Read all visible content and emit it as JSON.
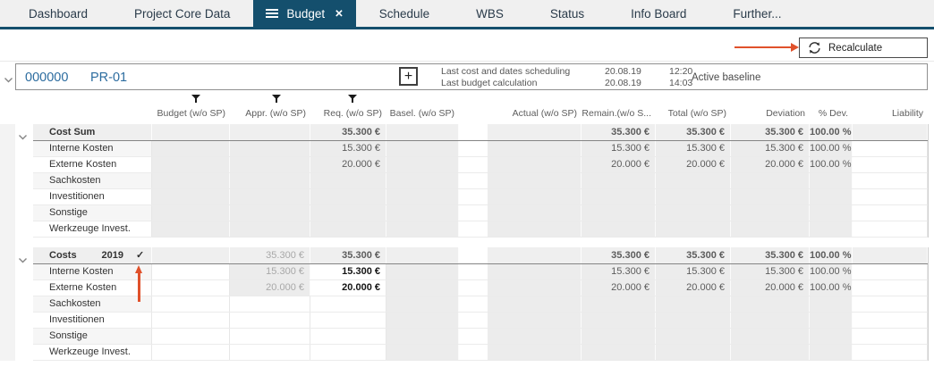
{
  "icons": {
    "close_tab": "✕",
    "check": "✓",
    "plus": "+"
  },
  "tabs": [
    {
      "label": "Dashboard",
      "active": false
    },
    {
      "label": "Project Core Data",
      "active": false
    },
    {
      "label": "Budget",
      "active": true
    },
    {
      "label": "Schedule",
      "active": false
    },
    {
      "label": "WBS",
      "active": false
    },
    {
      "label": "Status",
      "active": false
    },
    {
      "label": "Info Board",
      "active": false
    },
    {
      "label": "Further...",
      "active": false
    }
  ],
  "toolbar": {
    "recalculate": "Recalculate"
  },
  "project_bar": {
    "number": "000000",
    "code": "PR-01",
    "rows": [
      {
        "label": "Last cost and dates scheduling",
        "date": "20.08.19",
        "time": "12:20"
      },
      {
        "label": "Last budget calculation",
        "date": "20.08.19",
        "time": "14:03"
      }
    ],
    "baseline": "Active baseline"
  },
  "grid": {
    "headers": {
      "budget": "Budget (w/o SP)",
      "appr": "Appr. (w/o SP)",
      "req": "Req. (w/o SP)",
      "basel": "Basel. (w/o SP)",
      "actual": "Actual (w/o SP)",
      "remain": "Remain.(w/o S...",
      "total": "Total (w/o SP)",
      "deviation": "Deviation",
      "pdev": "% Dev.",
      "liability": "Liability"
    },
    "filter_on": [
      "budget",
      "appr",
      "req"
    ],
    "blocks": [
      {
        "title": "Cost Sum",
        "year": "",
        "checked": false,
        "summary": {
          "req": "35.300 €",
          "remain": "35.300 €",
          "total": "35.300 €",
          "deviation": "35.300 €",
          "pdev": "100.00 %"
        },
        "rows": [
          {
            "label": "Interne Kosten",
            "req": "15.300 €",
            "remain": "15.300 €",
            "total": "15.300 €",
            "deviation": "15.300 €",
            "pdev": "100.00 %"
          },
          {
            "label": "Externe Kosten",
            "req": "20.000 €",
            "remain": "20.000 €",
            "total": "20.000 €",
            "deviation": "20.000 €",
            "pdev": "100.00 %"
          },
          {
            "label": "Sachkosten"
          },
          {
            "label": "Investitionen"
          },
          {
            "label": "Sonstige"
          },
          {
            "label": "Werkzeuge Invest."
          }
        ]
      },
      {
        "title": "Costs",
        "year": "2019",
        "checked": true,
        "summary": {
          "appr": "35.300 €",
          "req": "35.300 €",
          "remain": "35.300 €",
          "total": "35.300 €",
          "deviation": "35.300 €",
          "pdev": "100.00 %"
        },
        "rows": [
          {
            "label": "Interne Kosten",
            "appr": "15.300 €",
            "req": "15.300 €",
            "remain": "15.300 €",
            "total": "15.300 €",
            "deviation": "15.300 €",
            "pdev": "100.00 %"
          },
          {
            "label": "Externe Kosten",
            "appr": "20.000 €",
            "req": "20.000 €",
            "remain": "20.000 €",
            "total": "20.000 €",
            "deviation": "20.000 €",
            "pdev": "100.00 %"
          },
          {
            "label": "Sachkosten"
          },
          {
            "label": "Investitionen"
          },
          {
            "label": "Sonstige"
          },
          {
            "label": "Werkzeuge Invest."
          }
        ]
      }
    ]
  },
  "colors": {
    "accent_navy": "#144f6d",
    "link_blue": "#2c6c9f",
    "annotation_arrow": "#e0512b",
    "readonly_cell": "#ececec",
    "group_row": "#efefef"
  }
}
